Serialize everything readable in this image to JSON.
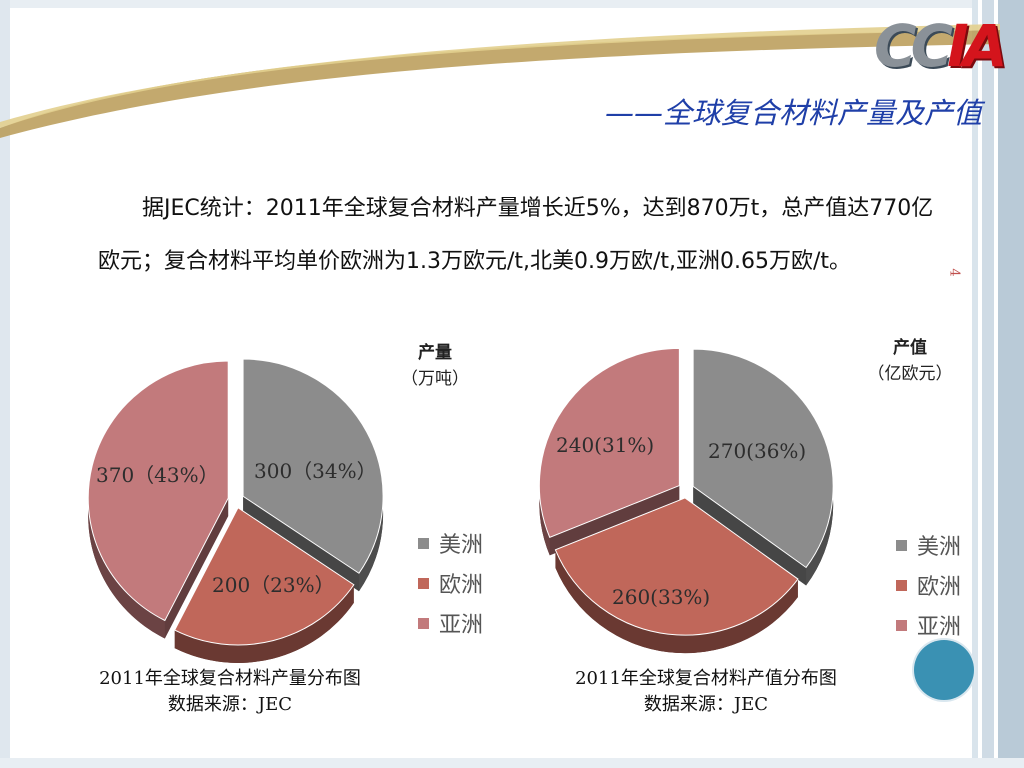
{
  "header": {
    "logo_text": "CCIA",
    "subtitle": "——全球复合材料产量及产值"
  },
  "body_text": "据JEC统计：2011年全球复合材料产量增长近5%，达到870万t，总产值达770亿欧元；复合材料平均单价欧洲为1.3万欧元/t,北美0.9万欧/t,亚洲0.65万欧/t。",
  "page_number": "4",
  "colors": {
    "americas": "#8c8c8c",
    "europe": "#c0675a",
    "asia": "#c27a7c",
    "accent_blue": "#3a91b3"
  },
  "chart_data": [
    {
      "type": "pie",
      "unit_line1": "产量",
      "unit_line2": "（万吨）",
      "categories": [
        "美洲",
        "欧洲",
        "亚洲"
      ],
      "values": [
        300,
        200,
        370
      ],
      "percent": [
        34,
        23,
        43
      ],
      "labels": [
        "300（34%）",
        "200（23%）",
        "370（43%）"
      ],
      "caption_line1": "2011年全球复合材料产量分布图",
      "caption_line2": "数据来源：JEC",
      "legend": "right"
    },
    {
      "type": "pie",
      "unit_line1": "产值",
      "unit_line2": "（亿欧元）",
      "categories": [
        "美洲",
        "欧洲",
        "亚洲"
      ],
      "values": [
        270,
        260,
        240
      ],
      "percent": [
        36,
        33,
        31
      ],
      "labels": [
        "270(36%)",
        "260(33%)",
        "240(31%)"
      ],
      "caption_line1": "2011年全球复合材料产值分布图",
      "caption_line2": "数据来源：JEC",
      "legend": "right"
    }
  ]
}
